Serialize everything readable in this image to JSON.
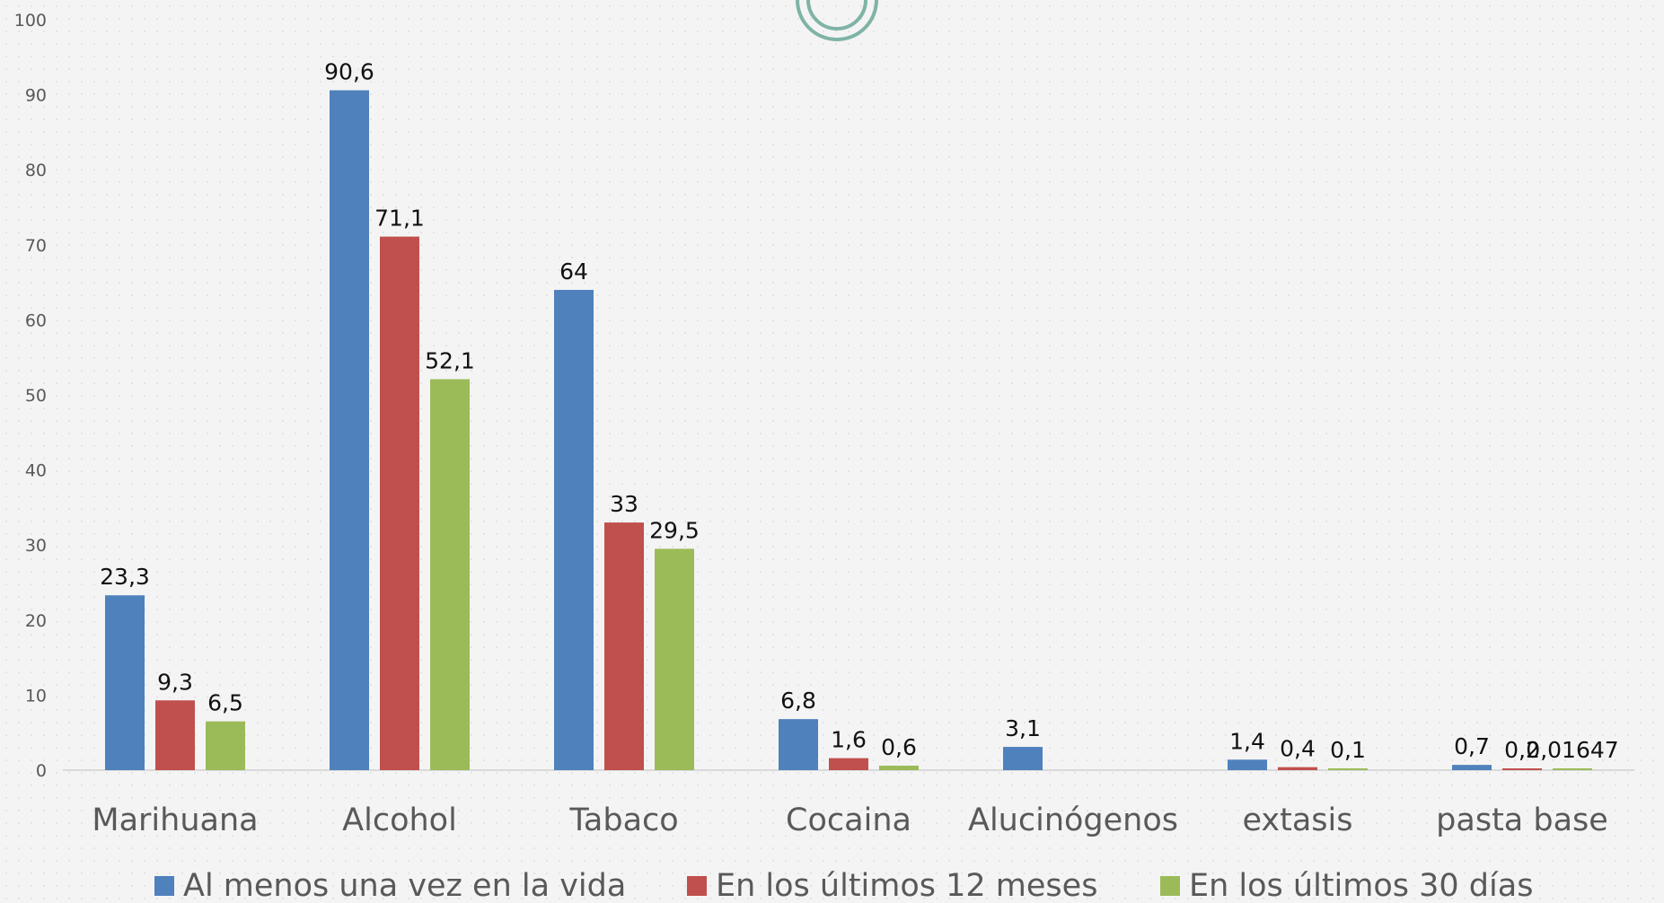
{
  "chart_data": {
    "type": "bar",
    "title": "",
    "xlabel": "",
    "ylabel": "",
    "ylim": [
      0,
      100
    ],
    "yticks": [
      0,
      10,
      20,
      30,
      40,
      50,
      60,
      70,
      80,
      90,
      100
    ],
    "categories": [
      "Marihuana",
      "Alcohol",
      "Tabaco",
      "Cocaina",
      "Alucinógenos",
      "extasis",
      "pasta base"
    ],
    "series": [
      {
        "name": "Al menos una vez en la vida",
        "color": "#4f81bd",
        "values": [
          23.3,
          90.6,
          64,
          6.8,
          3.1,
          1.4,
          0.7
        ],
        "labels": [
          "23,3",
          "90,6",
          "64",
          "6,8",
          "3,1",
          "1,4",
          "0,7"
        ]
      },
      {
        "name": "En los últimos 12 meses",
        "color": "#c0504d",
        "values": [
          9.3,
          71.1,
          33,
          1.6,
          null,
          0.4,
          0.2
        ],
        "labels": [
          "9,3",
          "71,1",
          "33",
          "1,6",
          null,
          "0,4",
          "0,2"
        ]
      },
      {
        "name": "En los últimos 30 días",
        "color": "#9bbb59",
        "values": [
          6.5,
          52.1,
          29.5,
          0.6,
          null,
          0.1,
          0.01647
        ],
        "labels": [
          "6,5",
          "52,1",
          "29,5",
          "0,6",
          null,
          "0,1",
          "0,01647"
        ]
      }
    ],
    "grid": false,
    "legend_position": "bottom"
  }
}
